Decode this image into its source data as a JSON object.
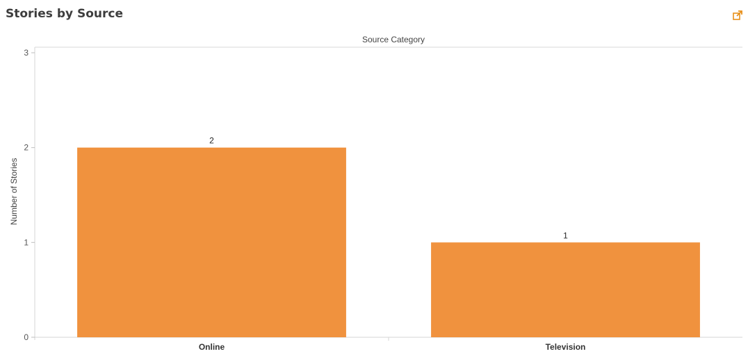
{
  "header": {
    "title": "Stories by Source",
    "popout_icon": "external-link-icon"
  },
  "chart_data": {
    "type": "bar",
    "title": "",
    "column_header": "Source Category",
    "categories": [
      "Online",
      "Television"
    ],
    "values": [
      2,
      1
    ],
    "data_labels": [
      "2",
      "1"
    ],
    "ylabel": "Number of Stories",
    "xlabel": "",
    "ylim": [
      0,
      3
    ],
    "yticks": [
      0,
      1,
      2,
      3
    ],
    "ytick_labels": [
      "0",
      "1",
      "2",
      "3"
    ],
    "grid": false,
    "legend": "none",
    "bar_color": "#f0923e"
  }
}
